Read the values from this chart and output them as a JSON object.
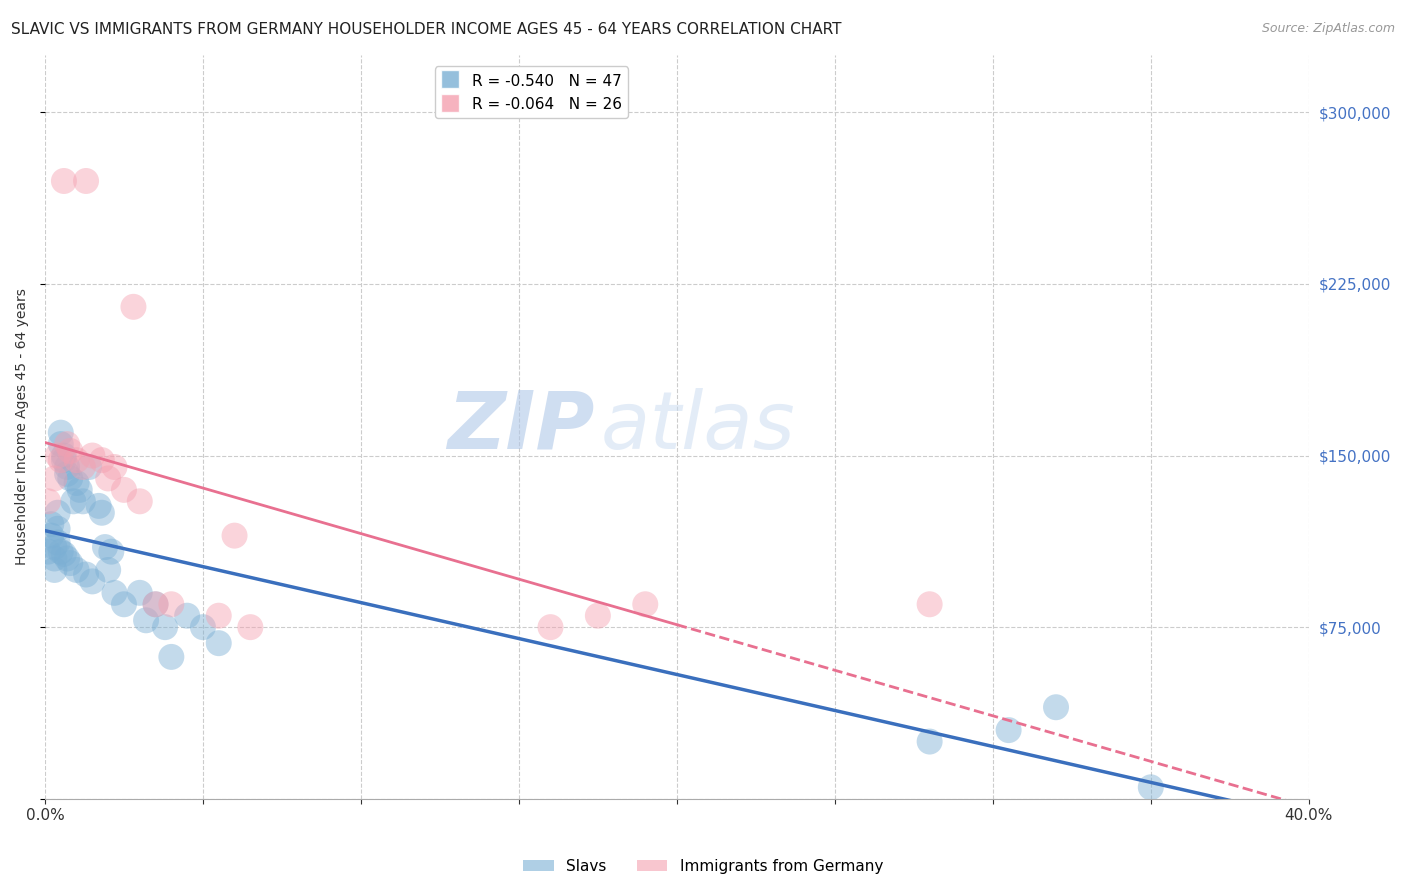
{
  "title": "SLAVIC VS IMMIGRANTS FROM GERMANY HOUSEHOLDER INCOME AGES 45 - 64 YEARS CORRELATION CHART",
  "source": "Source: ZipAtlas.com",
  "ylabel": "Householder Income Ages 45 - 64 years",
  "xlim": [
    0.0,
    0.4
  ],
  "ylim": [
    0,
    325000
  ],
  "yticks": [
    0,
    75000,
    150000,
    225000,
    300000
  ],
  "xticks": [
    0.0,
    0.05,
    0.1,
    0.15,
    0.2,
    0.25,
    0.3,
    0.35,
    0.4
  ],
  "slavs_x": [
    0.001,
    0.002,
    0.002,
    0.003,
    0.003,
    0.003,
    0.004,
    0.004,
    0.004,
    0.005,
    0.005,
    0.005,
    0.006,
    0.006,
    0.006,
    0.007,
    0.007,
    0.007,
    0.008,
    0.008,
    0.009,
    0.01,
    0.01,
    0.011,
    0.012,
    0.013,
    0.014,
    0.015,
    0.017,
    0.018,
    0.019,
    0.02,
    0.021,
    0.022,
    0.025,
    0.03,
    0.032,
    0.035,
    0.038,
    0.04,
    0.045,
    0.05,
    0.055,
    0.28,
    0.305,
    0.32,
    0.35
  ],
  "slavs_y": [
    108000,
    120000,
    115000,
    110000,
    105000,
    100000,
    125000,
    118000,
    112000,
    160000,
    155000,
    108000,
    150000,
    148000,
    107000,
    145000,
    142000,
    105000,
    140000,
    103000,
    130000,
    138000,
    100000,
    135000,
    130000,
    98000,
    145000,
    95000,
    128000,
    125000,
    110000,
    100000,
    108000,
    90000,
    85000,
    90000,
    78000,
    85000,
    75000,
    62000,
    80000,
    75000,
    68000,
    25000,
    30000,
    40000,
    5000
  ],
  "germany_x": [
    0.001,
    0.003,
    0.004,
    0.005,
    0.006,
    0.007,
    0.008,
    0.01,
    0.012,
    0.013,
    0.015,
    0.018,
    0.02,
    0.022,
    0.025,
    0.028,
    0.03,
    0.035,
    0.04,
    0.055,
    0.06,
    0.065,
    0.16,
    0.175,
    0.19,
    0.28
  ],
  "germany_y": [
    130000,
    140000,
    150000,
    148000,
    270000,
    155000,
    152000,
    148000,
    145000,
    270000,
    150000,
    148000,
    140000,
    145000,
    135000,
    215000,
    130000,
    85000,
    85000,
    80000,
    115000,
    75000,
    75000,
    80000,
    85000,
    85000
  ],
  "slavs_color": "#7bafd4",
  "germany_color": "#f4a0b0",
  "slavs_line_color": "#3a6fbd",
  "germany_line_color": "#e87090",
  "slavs_R": -0.54,
  "slavs_N": 47,
  "germany_R": -0.064,
  "germany_N": 26,
  "legend_label_slavs": "Slavs",
  "legend_label_germany": "Immigrants from Germany",
  "watermark_zip": "ZIP",
  "watermark_atlas": "atlas",
  "background_color": "#ffffff",
  "grid_color": "#cccccc",
  "axis_label_color": "#4472c4",
  "title_color": "#222222",
  "title_fontsize": 11,
  "ylabel_fontsize": 10
}
